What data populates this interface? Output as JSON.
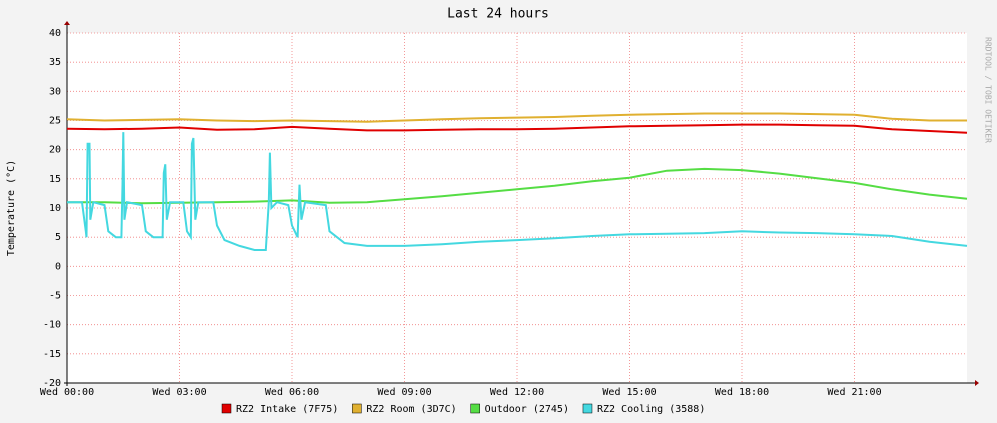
{
  "chart_data": {
    "type": "line",
    "title": "Last 24 hours",
    "y_label": "Temperature (°C)",
    "watermark": "RRDTOOL / TOBI OETIKER",
    "xlim": [
      0,
      24
    ],
    "ylim": [
      -20,
      40
    ],
    "yticks": [
      -20,
      -15,
      -10,
      -5,
      0,
      5,
      10,
      15,
      20,
      25,
      30,
      35,
      40
    ],
    "xticks": [
      {
        "value": 0,
        "label": "Wed 00:00"
      },
      {
        "value": 3,
        "label": "Wed 03:00"
      },
      {
        "value": 6,
        "label": "Wed 06:00"
      },
      {
        "value": 9,
        "label": "Wed 09:00"
      },
      {
        "value": 12,
        "label": "Wed 12:00"
      },
      {
        "value": 15,
        "label": "Wed 15:00"
      },
      {
        "value": 18,
        "label": "Wed 18:00"
      },
      {
        "value": 21,
        "label": "Wed 21:00"
      }
    ],
    "grid": true,
    "series": [
      {
        "name": "RZ2 Intake (7F75)",
        "color": "#e00000",
        "x": [
          0,
          1,
          2,
          3,
          4,
          5,
          6,
          7,
          8,
          9,
          10,
          11,
          12,
          13,
          14,
          15,
          16,
          17,
          18,
          19,
          20,
          21,
          22,
          23,
          24
        ],
        "values": [
          23.6,
          23.5,
          23.6,
          23.8,
          23.4,
          23.5,
          23.9,
          23.6,
          23.3,
          23.3,
          23.4,
          23.5,
          23.5,
          23.6,
          23.8,
          24.0,
          24.1,
          24.2,
          24.3,
          24.3,
          24.2,
          24.1,
          23.5,
          23.2,
          22.9
        ]
      },
      {
        "name": "RZ2 Room (3D7C)",
        "color": "#e0b030",
        "x": [
          0,
          1,
          2,
          3,
          4,
          5,
          6,
          7,
          8,
          9,
          10,
          11,
          12,
          13,
          14,
          15,
          16,
          17,
          18,
          19,
          20,
          21,
          22,
          23,
          24
        ],
        "values": [
          25.2,
          25.0,
          25.1,
          25.2,
          25.0,
          24.9,
          25.0,
          24.9,
          24.8,
          25.0,
          25.2,
          25.4,
          25.5,
          25.6,
          25.8,
          26.0,
          26.1,
          26.2,
          26.2,
          26.2,
          26.1,
          26.0,
          25.3,
          25.0,
          25.0
        ]
      },
      {
        "name": "Outdoor (2745)",
        "color": "#55dd44",
        "x": [
          0,
          1,
          2,
          3,
          4,
          5,
          6,
          7,
          8,
          9,
          10,
          11,
          12,
          13,
          14,
          15,
          16,
          17,
          18,
          19,
          20,
          21,
          22,
          23,
          24
        ],
        "values": [
          11,
          11,
          10.8,
          10.9,
          11,
          11.1,
          11.3,
          10.9,
          11,
          11.5,
          12,
          12.6,
          13.2,
          13.8,
          14.6,
          15.2,
          16.4,
          16.7,
          16.5,
          15.9,
          15.1,
          14.3,
          13.2,
          12.3,
          11.6
        ]
      },
      {
        "name": "RZ2 Cooling (3588)",
        "color": "#44d8e0",
        "x": [
          0,
          0.4,
          0.5,
          0.52,
          0.55,
          0.6,
          0.62,
          0.7,
          1.0,
          1.1,
          1.3,
          1.45,
          1.48,
          1.5,
          1.53,
          1.6,
          2.0,
          2.1,
          2.3,
          2.55,
          2.58,
          2.62,
          2.66,
          2.75,
          3.1,
          3.2,
          3.3,
          3.33,
          3.37,
          3.42,
          3.5,
          3.9,
          4.0,
          4.2,
          4.6,
          5.0,
          5.3,
          5.38,
          5.41,
          5.45,
          5.6,
          5.9,
          6.0,
          6.15,
          6.2,
          6.25,
          6.35,
          6.9,
          7.0,
          7.4,
          8,
          9,
          10,
          11,
          12,
          13,
          14,
          15,
          16,
          17,
          18,
          19,
          20,
          21,
          22,
          23,
          24
        ],
        "values": [
          11,
          11,
          6,
          5,
          21,
          21,
          8,
          11,
          10.5,
          6,
          5,
          5,
          14,
          23,
          8,
          11,
          10.5,
          6,
          5,
          5,
          16,
          17.5,
          8,
          11,
          11,
          6,
          5,
          21,
          22,
          8,
          11,
          11,
          7,
          4.5,
          3.5,
          2.8,
          2.8,
          11,
          19.5,
          10,
          11,
          10.5,
          7,
          5,
          14,
          8,
          11,
          10.5,
          6,
          4,
          3.5,
          3.5,
          3.8,
          4.2,
          4.5,
          4.8,
          5.2,
          5.5,
          5.6,
          5.7,
          6.0,
          5.8,
          5.7,
          5.5,
          5.2,
          4.2,
          3.5
        ]
      }
    ]
  }
}
